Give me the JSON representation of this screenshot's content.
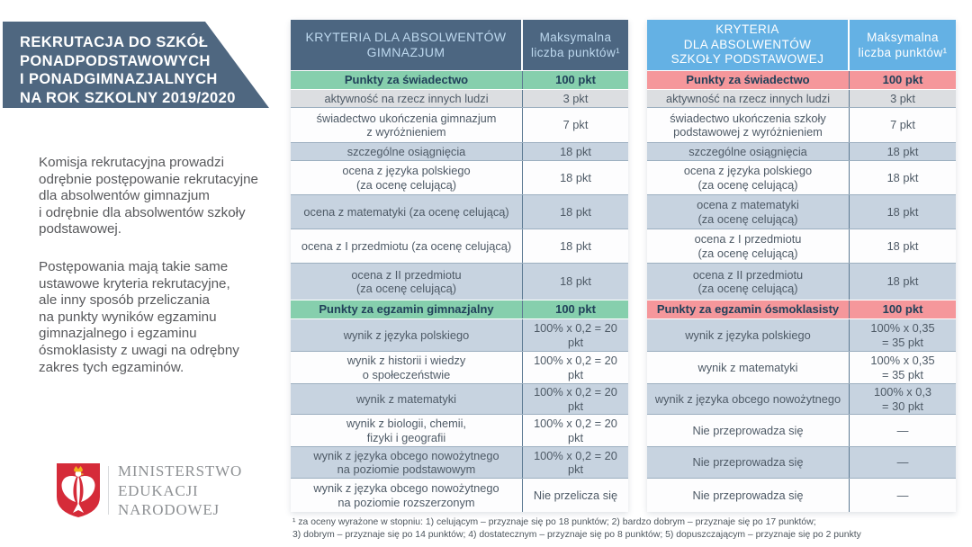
{
  "banner": {
    "bg": "#4f6780",
    "text": "REKRUTACJA DO SZKÓŁ\nPONADPODSTAWOWYCH\nI PONADGIMNAZJALNYCH\nNA ROK SZKOLNY 2019/2020"
  },
  "intro": {
    "paragraphs": [
      "Komisja rekrutacyjna prowadzi\nodrębnie postępowanie rekrutacyjne\ndla absolwentów gimnazjum\ni odrębnie dla absolwentów szkoły\npodstawowej.",
      "Postępowania mają takie same\nustawowe kryteria rekrutacyjne,\nale inny sposób przeliczania\nna punkty wyników egzaminu\ngimnazjalnego i egzaminu\nósmoklasisty z uwagi na odrębny\nzakres tych egzaminów."
    ]
  },
  "logo": {
    "ministry_name": "MINISTERSTWO\nEDUKACJI\nNARODOWEJ",
    "shield_color": "#d52b39",
    "eagle_color": "#ffffff",
    "crown_color": "#f2b21c"
  },
  "tables": [
    {
      "id": "gimnazjum",
      "header_bg": "#4c6681",
      "header_text_color": "#bdd8ee",
      "accent": "#86cfad",
      "header": {
        "criteria": "KRYTERIA DLA ABSOLWENTÓW\nGIMNAZJUM",
        "points": "Maksymalna\nliczba punktów¹"
      },
      "rows": [
        {
          "label": "Punkty za świadectwo",
          "value": "100 pkt",
          "type": "section"
        },
        {
          "label": "aktywność na rzecz innych ludzi",
          "value": "3 pkt",
          "type": "gray"
        },
        {
          "label": "świadectwo ukończenia gimnazjum\nz wyróżnieniem",
          "value": "7 pkt",
          "type": "white"
        },
        {
          "label": "szczególne osiągnięcia",
          "value": "18 pkt",
          "type": "blue"
        },
        {
          "label": "ocena z języka polskiego\n(za ocenę celującą)",
          "value": "18 pkt",
          "type": "white"
        },
        {
          "label": "ocena z matematyki (za ocenę celującą)",
          "value": "18 pkt",
          "type": "blue"
        },
        {
          "label": "ocena z I przedmiotu (za ocenę celującą)",
          "value": "18 pkt",
          "type": "white"
        },
        {
          "label": "ocena z II przedmiotu\n(za ocenę celującą)",
          "value": "18 pkt",
          "type": "blue"
        },
        {
          "label": "Punkty za egzamin gimnazjalny",
          "value": "100 pkt",
          "type": "section"
        },
        {
          "label": "wynik z języka polskiego",
          "value": "100% x 0,2 = 20 pkt",
          "type": "blue"
        },
        {
          "label": "wynik z historii i wiedzy\no społeczeństwie",
          "value": "100% x 0,2 = 20 pkt",
          "type": "white"
        },
        {
          "label": "wynik z matematyki",
          "value": "100% x 0,2 = 20 pkt",
          "type": "blue"
        },
        {
          "label": "wynik z biologii, chemii,\nfizyki i geografii",
          "value": "100% x 0,2 = 20 pkt",
          "type": "white"
        },
        {
          "label": "wynik z języka obcego nowożytnego\nna poziomie podstawowym",
          "value": "100% x 0,2 = 20 pkt",
          "type": "blue"
        },
        {
          "label": "wynik z języka obcego nowożytnego\nna poziomie rozszerzonym",
          "value": "Nie przelicza się",
          "type": "white"
        }
      ]
    },
    {
      "id": "podstawowa",
      "header_bg": "#64b1e4",
      "header_text_color": "#ffffff",
      "accent": "#f5979b",
      "header": {
        "criteria": "KRYTERIA\nDLA ABSOLWENTÓW\nSZKOŁY PODSTAWOWEJ",
        "points": "Maksymalna\nliczba punktów¹"
      },
      "rows": [
        {
          "label": "Punkty za świadectwo",
          "value": "100 pkt",
          "type": "section"
        },
        {
          "label": "aktywność na rzecz innych ludzi",
          "value": "3 pkt",
          "type": "gray"
        },
        {
          "label": "świadectwo ukończenia szkoły\npodstawowej z wyróżnieniem",
          "value": "7 pkt",
          "type": "white"
        },
        {
          "label": "szczególne osiągnięcia",
          "value": "18 pkt",
          "type": "blue"
        },
        {
          "label": "ocena z języka polskiego\n(za ocenę celującą)",
          "value": "18 pkt",
          "type": "white"
        },
        {
          "label": "ocena z matematyki\n(za ocenę celującą)",
          "value": "18 pkt",
          "type": "blue"
        },
        {
          "label": "ocena z I przedmiotu\n(za ocenę celującą)",
          "value": "18 pkt",
          "type": "white"
        },
        {
          "label": "ocena z II przedmiotu\n(za ocenę celującą)",
          "value": "18 pkt",
          "type": "blue"
        },
        {
          "label": "Punkty za egzamin ósmoklasisty",
          "value": "100 pkt",
          "type": "section"
        },
        {
          "label": "wynik z języka polskiego",
          "value": "100% x 0,35\n= 35 pkt",
          "type": "blue"
        },
        {
          "label": "wynik z matematyki",
          "value": "100% x 0,35\n= 35 pkt",
          "type": "white"
        },
        {
          "label": "wynik z języka obcego nowożytnego",
          "value": "100% x 0,3\n= 30 pkt",
          "type": "blue"
        },
        {
          "label": "Nie przeprowadza się",
          "value": "—",
          "type": "white"
        },
        {
          "label": "Nie przeprowadza się",
          "value": "—",
          "type": "blue"
        },
        {
          "label": "Nie przeprowadza się",
          "value": "—",
          "type": "white"
        }
      ]
    }
  ],
  "footnote": {
    "text": "¹ za oceny wyrażone w stopniu: 1) celującym – przyznaje się po 18 punktów; 2) bardzo dobrym – przyznaje się po 17 punktów;\n3) dobrym – przyznaje się po 14 punktów; 4) dostatecznym – przyznaje się po 8 punktów; 5) dopuszczającym – przyznaje się po 2 punkty"
  }
}
